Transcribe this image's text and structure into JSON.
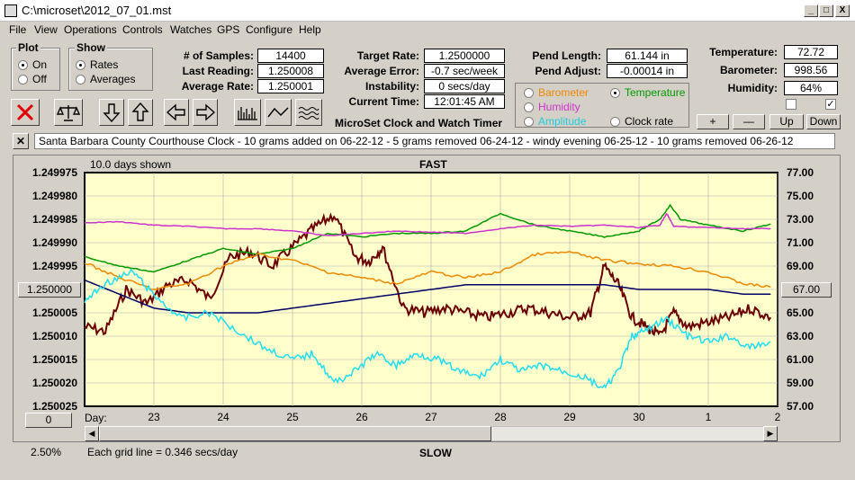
{
  "window": {
    "title": "C:\\microset\\2012_07_01.mst",
    "min": "_",
    "max": "□",
    "close": "X"
  },
  "menu": [
    "File",
    "View",
    "Operations",
    "Controls",
    "Watches",
    "GPS",
    "Configure",
    "Help"
  ],
  "plot_group": {
    "title": "Plot",
    "on": "On",
    "off": "Off"
  },
  "show_group": {
    "title": "Show",
    "rates": "Rates",
    "averages": "Averages"
  },
  "stats": {
    "samples_label": "# of Samples:",
    "samples": "14400",
    "last_label": "Last Reading:",
    "last": "1.250008",
    "avg_label": "Average Rate:",
    "avg": "1.250001"
  },
  "targets": {
    "target_label": "Target Rate:",
    "target": "1.2500000",
    "error_label": "Average Error:",
    "error": "-0.7 sec/week",
    "instab_label": "Instability:",
    "instab": "0 secs/day",
    "time_label": "Current Time:",
    "time": "12:01:45 AM",
    "app_title": "MicroSet Clock and Watch Timer"
  },
  "pend": {
    "length_label": "Pend Length:",
    "length": "61.144 in",
    "adjust_label": "Pend Adjust:",
    "adjust": "-0.00014 in"
  },
  "env": {
    "temp_label": "Temperature:",
    "temp": "72.72",
    "baro_label": "Barometer:",
    "baro": "998.56",
    "hum_label": "Humidity:",
    "hum": "64%"
  },
  "sensor_select": {
    "barometer": "Barometer",
    "temperature": "Temperature",
    "humidity": "Humidity",
    "amplitude": "Amplitude",
    "clock_rate": "Clock rate"
  },
  "axis_buttons": {
    "plus": "+",
    "minus": "—",
    "up": "Up",
    "down": "Down"
  },
  "notes_text": "Santa Barbara County Courthouse Clock - 10 grams added on 06-22-12 - 5 grams removed 06-24-12 - windy evening 06-25-12 - 10 grams removed 06-26-12",
  "left_value_button": "1.250000",
  "right_value_button": "67.00",
  "zero_button": "0",
  "footer": {
    "percent": "2.50%",
    "grid": "Each grid line = 0.346 secs/day"
  },
  "colors": {
    "plot_bg": "#ffffcc",
    "rate": "#6b0000",
    "average": "#000066",
    "temperature": "#009900",
    "humidity": "#cc33cc",
    "barometer": "#ee8800",
    "amplitude": "#22ddee"
  },
  "chart_data": {
    "type": "line",
    "days_shown": "10.0 days shown",
    "top_label": "FAST",
    "bottom_label": "SLOW",
    "xlabel": "Day:",
    "x_ticks": [
      "23",
      "24",
      "25",
      "26",
      "27",
      "28",
      "29",
      "30",
      "1",
      "2"
    ],
    "x_range": [
      22.0,
      32.0
    ],
    "y_left_ticks": [
      "1.249975",
      "1.249980",
      "1.249985",
      "1.249990",
      "1.249995",
      "1.250000",
      "1.250005",
      "1.250010",
      "1.250015",
      "1.250020",
      "1.250025"
    ],
    "y_left_range": [
      1.249975,
      1.250025
    ],
    "y_left_inverted": true,
    "y_right_ticks": [
      "77.00",
      "75.00",
      "73.00",
      "71.00",
      "69.00",
      "67.00",
      "65.00",
      "63.00",
      "61.00",
      "59.00",
      "57.00"
    ],
    "y_right_range": [
      57.0,
      77.0
    ],
    "grid": true,
    "series": [
      {
        "name": "Rate",
        "axis": "left",
        "color": "#6b0000",
        "x": [
          22.0,
          22.3,
          22.6,
          22.9,
          23.2,
          23.5,
          23.8,
          24.1,
          24.4,
          24.7,
          25.0,
          25.3,
          25.6,
          25.9,
          26.1,
          26.3,
          26.6,
          26.9,
          27.2,
          27.5,
          27.8,
          28.1,
          28.4,
          28.7,
          29.0,
          29.3,
          29.5,
          29.7,
          29.9,
          30.1,
          30.3,
          30.5,
          30.7,
          31.0,
          31.3,
          31.6,
          31.9
        ],
        "y": [
          1.250008,
          1.250009,
          1.25,
          1.250003,
          1.249999,
          1.249998,
          1.250002,
          1.249993,
          1.249992,
          1.249995,
          1.249991,
          1.249987,
          1.249984,
          1.249993,
          1.249994,
          1.249991,
          1.250004,
          1.250005,
          1.250004,
          1.250005,
          1.250006,
          1.250005,
          1.250004,
          1.250005,
          1.250006,
          1.250005,
          1.249995,
          1.249999,
          1.250006,
          1.250008,
          1.25001,
          1.250005,
          1.250008,
          1.250007,
          1.250006,
          1.250004,
          1.250006
        ]
      },
      {
        "name": "Average",
        "axis": "left",
        "color": "#000066",
        "x": [
          22.0,
          22.5,
          23.0,
          23.5,
          24.0,
          24.5,
          25.0,
          25.5,
          26.0,
          26.5,
          27.0,
          27.5,
          28.0,
          28.5,
          29.0,
          29.5,
          30.0,
          30.5,
          31.0,
          31.5,
          31.9
        ],
        "y": [
          1.249998,
          1.250001,
          1.250004,
          1.250005,
          1.250005,
          1.250005,
          1.250004,
          1.250003,
          1.250002,
          1.250001,
          1.25,
          1.249999,
          1.249999,
          1.249999,
          1.249999,
          1.249999,
          1.25,
          1.25,
          1.25,
          1.250001,
          1.250001
        ]
      },
      {
        "name": "Temperature",
        "axis": "right",
        "color": "#009900",
        "x": [
          22.0,
          22.5,
          23.0,
          23.5,
          24.0,
          24.5,
          25.0,
          25.5,
          26.0,
          26.5,
          27.0,
          27.5,
          28.0,
          28.5,
          29.0,
          29.5,
          30.0,
          30.3,
          30.45,
          30.6,
          31.0,
          31.5,
          31.9
        ],
        "y": [
          69.8,
          69.0,
          68.5,
          69.5,
          70.5,
          70.0,
          70.5,
          71.8,
          71.5,
          71.8,
          71.8,
          72.0,
          73.5,
          72.5,
          72.0,
          71.5,
          72.0,
          73.0,
          74.2,
          73.0,
          72.5,
          72.0,
          72.6
        ]
      },
      {
        "name": "Humidity",
        "axis": "right",
        "color": "#cc33cc",
        "x": [
          22.0,
          22.5,
          23.0,
          23.5,
          24.0,
          24.5,
          25.0,
          25.5,
          26.0,
          26.5,
          27.0,
          27.5,
          28.0,
          28.5,
          29.0,
          29.5,
          30.0,
          30.3,
          30.4,
          30.5,
          31.0,
          31.5,
          31.9
        ],
        "y": [
          72.7,
          72.8,
          72.5,
          72.4,
          72.2,
          72.2,
          72.0,
          71.6,
          71.8,
          72.0,
          71.9,
          71.8,
          72.2,
          72.5,
          72.4,
          72.5,
          72.3,
          72.5,
          73.5,
          72.4,
          72.3,
          72.2,
          72.2
        ]
      },
      {
        "name": "Barometer",
        "axis": "right",
        "color": "#ee8800",
        "x": [
          22.0,
          22.5,
          23.0,
          23.5,
          24.0,
          24.5,
          25.0,
          25.5,
          26.0,
          26.5,
          27.0,
          27.5,
          28.0,
          28.5,
          29.0,
          29.5,
          30.0,
          30.5,
          31.0,
          31.5,
          31.9
        ],
        "y": [
          69.3,
          68.0,
          67.0,
          67.5,
          69.0,
          70.0,
          69.5,
          68.5,
          68.0,
          67.5,
          68.5,
          68.0,
          68.5,
          70.0,
          70.2,
          69.5,
          69.2,
          69.0,
          68.5,
          67.5,
          67.2
        ]
      },
      {
        "name": "Amplitude",
        "axis": "right",
        "color": "#22ddee",
        "x": [
          22.0,
          22.3,
          22.7,
          23.0,
          23.4,
          23.8,
          24.2,
          24.6,
          25.0,
          25.3,
          25.6,
          25.9,
          26.2,
          26.5,
          26.8,
          27.1,
          27.4,
          27.7,
          28.0,
          28.3,
          28.6,
          28.9,
          29.2,
          29.5,
          29.7,
          29.9,
          30.1,
          30.4,
          30.7,
          31.0,
          31.3,
          31.6,
          31.9
        ],
        "y": [
          66.0,
          67.5,
          68.5,
          66.5,
          64.5,
          65.0,
          63.5,
          62.0,
          61.0,
          61.5,
          59.0,
          60.0,
          61.5,
          60.5,
          61.5,
          61.0,
          60.0,
          59.5,
          61.0,
          60.0,
          60.5,
          60.0,
          59.5,
          58.5,
          60.0,
          63.0,
          63.5,
          64.5,
          63.0,
          62.5,
          63.0,
          62.0,
          62.5
        ]
      }
    ]
  }
}
